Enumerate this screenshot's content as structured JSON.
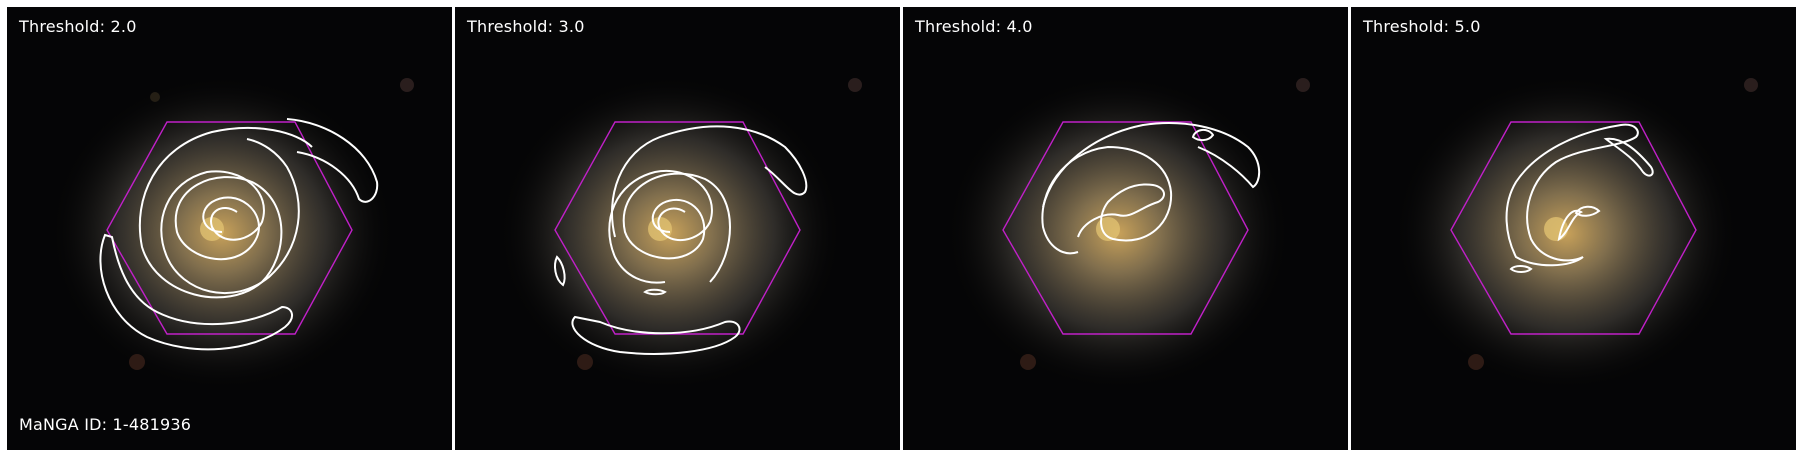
{
  "panels": [
    {
      "threshold_label": "Threshold: 2.0"
    },
    {
      "threshold_label": "Threshold: 3.0"
    },
    {
      "threshold_label": "Threshold: 4.0"
    },
    {
      "threshold_label": "Threshold: 5.0"
    }
  ],
  "galaxy_id_label": "MaNGA ID: 1-481936",
  "colors": {
    "background": "#000000",
    "contour": "#ffffff",
    "hexagon": "#c020c8",
    "galaxy_core": "#c9a25a",
    "galaxy_disk": "#5f5a52"
  }
}
